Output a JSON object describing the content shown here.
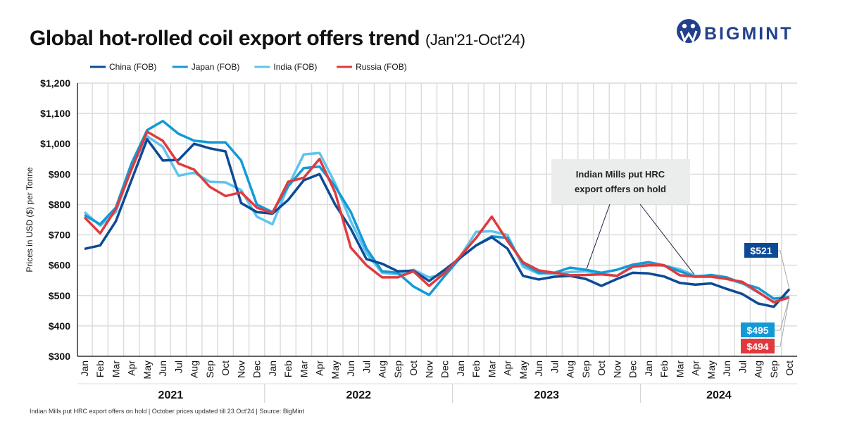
{
  "header": {
    "title": "Global hot-rolled coil export offers trend",
    "subtitle": "(Jan'21-Oct'24)",
    "logo_text": "BIGMINT"
  },
  "footer": {
    "note": "Indian Mills put HRC export offers on hold | October prices updated till 23 Oct'24 | Source: BigMint"
  },
  "colors": {
    "China": "#0d4a96",
    "Japan": "#139ad6",
    "India": "#5ec4ec",
    "Russia": "#e03a3e",
    "logo": "#23408e"
  },
  "chart_data": {
    "type": "line",
    "title": "Global hot-rolled coil export offers trend",
    "subtitle": "(Jan'21-Oct'24)",
    "ylabel": "Prices in USD ($) per Tonne",
    "xlabel": "",
    "ylim": [
      300,
      1200
    ],
    "yticks": [
      300,
      400,
      500,
      600,
      700,
      800,
      900,
      1000,
      1100,
      1200
    ],
    "ytick_labels": [
      "$300",
      "$400",
      "$500",
      "$600",
      "$700",
      "$800",
      "$900",
      "$1,000",
      "$1,100",
      "$1,200"
    ],
    "grid": true,
    "legend_position": "top-left",
    "years": [
      {
        "label": "2021",
        "months": 12
      },
      {
        "label": "2022",
        "months": 12
      },
      {
        "label": "2023",
        "months": 12
      },
      {
        "label": "2024",
        "months": 10
      }
    ],
    "x": [
      "Jan",
      "Feb",
      "Mar",
      "Apr",
      "May",
      "Jun",
      "Jul",
      "Aug",
      "Sep",
      "Oct",
      "Nov",
      "Dec",
      "Jan",
      "Feb",
      "Mar",
      "Apr",
      "May",
      "Jun",
      "Jul",
      "Aug",
      "Sep",
      "Oct",
      "Nov",
      "Dec",
      "Jan",
      "Feb",
      "Mar",
      "Apr",
      "May",
      "Jun",
      "Jul",
      "Aug",
      "Sep",
      "Oct",
      "Nov",
      "Dec",
      "Jan",
      "Feb",
      "Mar",
      "Apr",
      "May",
      "Jun",
      "Jul",
      "Aug",
      "Sep",
      "Oct"
    ],
    "series": [
      {
        "name": "China (FOB)",
        "color": "#0d4a96",
        "values": [
          654,
          665,
          745,
          880,
          1015,
          945,
          947,
          1000,
          985,
          975,
          805,
          775,
          770,
          815,
          880,
          900,
          800,
          720,
          620,
          605,
          580,
          582,
          548,
          585,
          625,
          665,
          692,
          655,
          565,
          553,
          562,
          565,
          555,
          532,
          555,
          575,
          573,
          563,
          542,
          536,
          540,
          522,
          505,
          474,
          463,
          521
        ]
      },
      {
        "name": "Japan (FOB)",
        "color": "#139ad6",
        "values": [
          765,
          735,
          790,
          935,
          1045,
          1075,
          1033,
          1010,
          1005,
          1005,
          945,
          800,
          775,
          860,
          920,
          925,
          860,
          775,
          655,
          580,
          575,
          530,
          502,
          565,
          625,
          665,
          695,
          690,
          605,
          575,
          575,
          592,
          585,
          575,
          585,
          602,
          610,
          600,
          580,
          562,
          568,
          560,
          540,
          525,
          490,
          495
        ]
      },
      {
        "name": "India (FOB)",
        "color": "#5ec4ec",
        "values": [
          775,
          730,
          775,
          920,
          1025,
          990,
          895,
          905,
          875,
          873,
          848,
          760,
          735,
          860,
          965,
          970,
          870,
          745,
          640,
          575,
          570,
          585,
          560,
          570,
          630,
          710,
          712,
          700,
          595,
          572,
          572,
          578,
          580,
          572,
          565,
          600,
          605,
          598,
          587,
          565,
          565,
          555,
          540,
          510,
          480,
          494
        ]
      },
      {
        "name": "Russia (FOB)",
        "color": "#e03a3e",
        "values": [
          758,
          705,
          785,
          915,
          1040,
          1010,
          935,
          915,
          858,
          828,
          840,
          790,
          772,
          875,
          888,
          950,
          840,
          658,
          600,
          560,
          560,
          580,
          532,
          575,
          630,
          690,
          760,
          680,
          610,
          583,
          575,
          567,
          568,
          570,
          565,
          595,
          600,
          600,
          567,
          562,
          562,
          555,
          545,
          512,
          478,
          494
        ]
      }
    ],
    "annotations": [
      {
        "text_lines": [
          "Indian Mills put HRC",
          "export offers on hold"
        ],
        "points_to": [
          "Sep 2023",
          "Apr 2024"
        ]
      }
    ],
    "end_labels": [
      {
        "series": "China (FOB)",
        "text": "$521",
        "color": "#0d4a96"
      },
      {
        "series": "Japan (FOB)",
        "text": "$495",
        "color": "#139ad6"
      },
      {
        "series": "Russia (FOB)",
        "text": "$494",
        "color": "#e03a3e"
      }
    ]
  }
}
